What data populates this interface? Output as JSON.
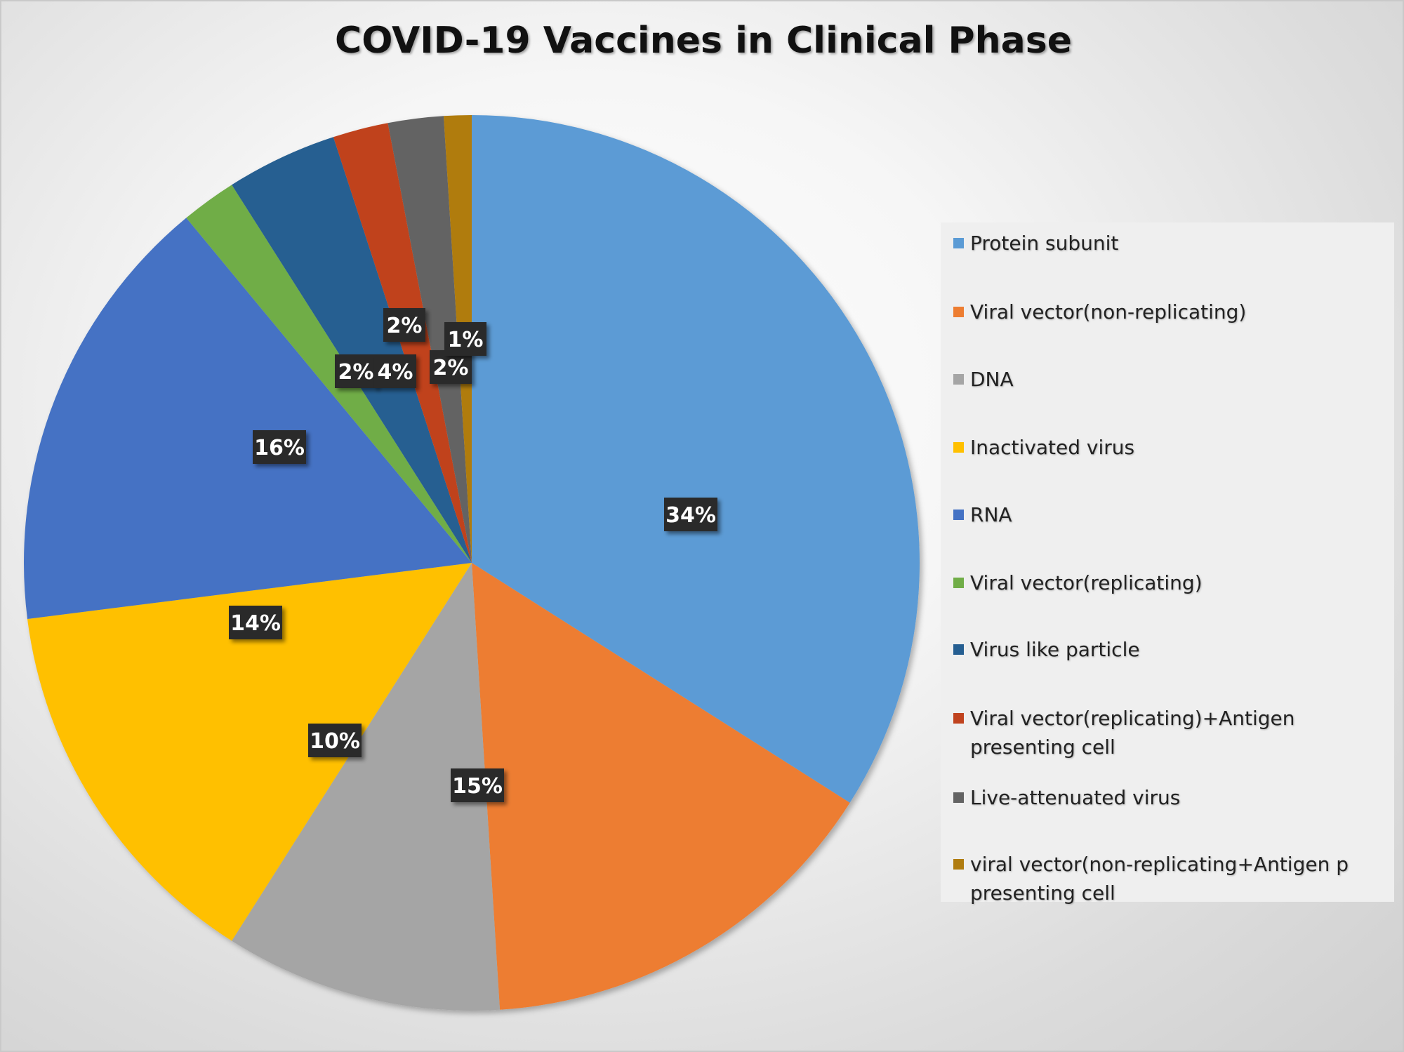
{
  "chart_data": {
    "type": "pie",
    "title": "COVID-19 Vaccines in Clinical Phase",
    "legend_position": "right",
    "slices": [
      {
        "label": "Protein subunit",
        "value": 34,
        "data_label": "34%",
        "color": "#5b9bd5"
      },
      {
        "label": "Viral vector(non-replicating)",
        "value": 15,
        "data_label": "15%",
        "color": "#ed7d31"
      },
      {
        "label": "DNA",
        "value": 10,
        "data_label": "10%",
        "color": "#a5a5a5"
      },
      {
        "label": "Inactivated virus",
        "value": 14,
        "data_label": "14%",
        "color": "#ffc000"
      },
      {
        "label": "RNA",
        "value": 16,
        "data_label": "16%",
        "color": "#4472c4"
      },
      {
        "label": "Viral vector(replicating)",
        "value": 2,
        "data_label": "2%",
        "color": "#70ad47"
      },
      {
        "label": "Virus like particle",
        "value": 4,
        "data_label": "4%",
        "color": "#255e91"
      },
      {
        "label": "Viral vector(replicating)+Antigen presenting cell",
        "value": 2,
        "data_label": "2%",
        "color": "#c0431e"
      },
      {
        "label": "Live-attenuated virus",
        "value": 2,
        "data_label": "2%",
        "color": "#636363"
      },
      {
        "label": "viral vector(non-replicating+Antigen p presenting cell",
        "value": 1,
        "data_label": "1%",
        "color": "#b07c10"
      }
    ]
  }
}
